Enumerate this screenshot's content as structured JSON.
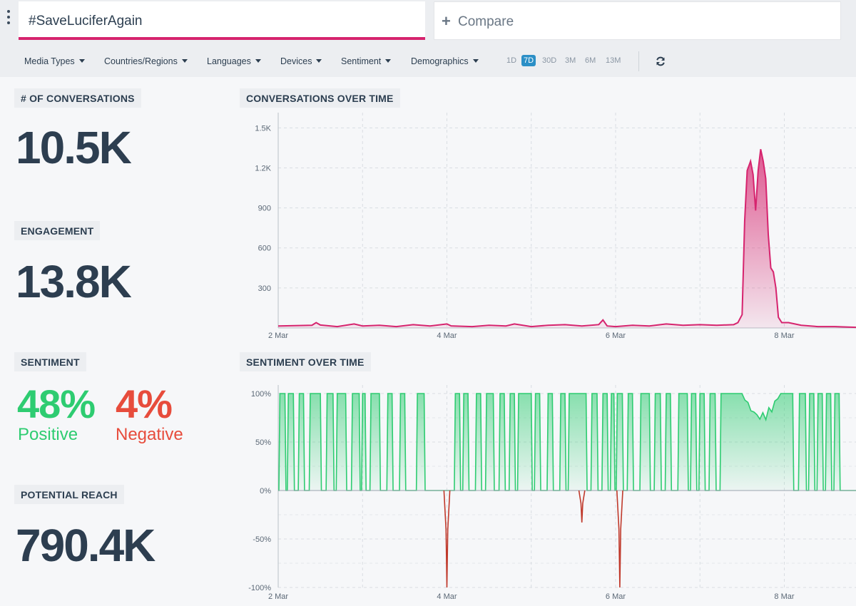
{
  "search": {
    "query": "#SaveLuciferAgain",
    "compare_label": "Compare"
  },
  "filters": [
    "Media Types",
    "Countries/Regions",
    "Languages",
    "Devices",
    "Sentiment",
    "Demographics"
  ],
  "ranges": {
    "items": [
      "1D",
      "7D",
      "30D",
      "3M",
      "6M",
      "13M"
    ],
    "selected": "7D"
  },
  "metrics": {
    "conversations": {
      "label": "# OF CONVERSATIONS",
      "value": "10.5K"
    },
    "engagement": {
      "label": "ENGAGEMENT",
      "value": "13.8K"
    },
    "sentiment": {
      "label": "SENTIMENT",
      "positive_value": "48%",
      "positive_label": "Positive",
      "negative_value": "4%",
      "negative_label": "Negative"
    },
    "reach": {
      "label": "POTENTIAL REACH",
      "value": "790.4K"
    }
  },
  "colors": {
    "accent": "#d6246e",
    "positive": "#2ecc71",
    "negative": "#e74c3c",
    "selected_range": "#2b8fc6"
  },
  "chart_data": [
    {
      "type": "area",
      "title": "CONVERSATIONS OVER TIME",
      "y_ticks": [
        "1.5K",
        "1.2K",
        "900",
        "600",
        "300"
      ],
      "y_tick_values": [
        1500,
        1200,
        900,
        600,
        300
      ],
      "x_ticks": [
        "2 Mar",
        "4 Mar",
        "6 Mar",
        "8 Mar"
      ],
      "x_tick_values": [
        0,
        2,
        4,
        6
      ],
      "ylim": [
        0,
        1550
      ],
      "xlim": [
        0,
        6.85
      ],
      "color": "#d6246e",
      "points": [
        [
          0,
          15
        ],
        [
          0.4,
          20
        ],
        [
          0.45,
          40
        ],
        [
          0.5,
          22
        ],
        [
          0.7,
          10
        ],
        [
          0.9,
          30
        ],
        [
          1.0,
          15
        ],
        [
          1.2,
          20
        ],
        [
          1.4,
          10
        ],
        [
          1.6,
          25
        ],
        [
          1.8,
          15
        ],
        [
          2.0,
          30
        ],
        [
          2.05,
          15
        ],
        [
          2.3,
          10
        ],
        [
          2.5,
          20
        ],
        [
          2.7,
          15
        ],
        [
          2.8,
          30
        ],
        [
          3.0,
          10
        ],
        [
          3.2,
          20
        ],
        [
          3.4,
          25
        ],
        [
          3.6,
          15
        ],
        [
          3.8,
          25
        ],
        [
          3.85,
          60
        ],
        [
          3.9,
          15
        ],
        [
          4.0,
          10
        ],
        [
          4.2,
          20
        ],
        [
          4.4,
          15
        ],
        [
          4.6,
          30
        ],
        [
          4.8,
          20
        ],
        [
          5.0,
          25
        ],
        [
          5.2,
          20
        ],
        [
          5.4,
          25
        ],
        [
          5.45,
          40
        ],
        [
          5.5,
          100
        ],
        [
          5.53,
          800
        ],
        [
          5.56,
          1180
        ],
        [
          5.6,
          1250
        ],
        [
          5.63,
          1150
        ],
        [
          5.66,
          880
        ],
        [
          5.69,
          1180
        ],
        [
          5.72,
          1340
        ],
        [
          5.75,
          1250
        ],
        [
          5.78,
          1120
        ],
        [
          5.81,
          700
        ],
        [
          5.84,
          450
        ],
        [
          5.87,
          420
        ],
        [
          5.9,
          300
        ],
        [
          5.93,
          80
        ],
        [
          5.97,
          40
        ],
        [
          6.05,
          40
        ],
        [
          6.2,
          20
        ],
        [
          6.4,
          10
        ],
        [
          6.6,
          10
        ],
        [
          6.85,
          5
        ]
      ]
    },
    {
      "type": "area",
      "title": "SENTIMENT OVER TIME",
      "y_ticks": [
        "100%",
        "50%",
        "0%",
        "-50%",
        "-100%"
      ],
      "y_tick_values": [
        100,
        50,
        0,
        -50,
        -100
      ],
      "x_ticks": [
        "2 Mar",
        "4 Mar",
        "6 Mar",
        "8 Mar"
      ],
      "x_tick_values": [
        0,
        2,
        4,
        6
      ],
      "ylim": [
        -100,
        100
      ],
      "xlim": [
        0,
        6.85
      ],
      "positive_color": "#2ecc71",
      "negative_color": "#c0392b",
      "positive_spikes": [
        [
          0.02,
          0.08
        ],
        [
          0.12,
          0.18
        ],
        [
          0.25,
          0.3
        ],
        [
          0.38,
          0.5
        ],
        [
          0.58,
          0.65
        ],
        [
          0.7,
          0.8
        ],
        [
          0.88,
          0.96
        ],
        [
          1.0,
          1.03
        ],
        [
          1.1,
          1.2
        ],
        [
          1.3,
          1.35
        ],
        [
          1.45,
          1.5
        ],
        [
          1.65,
          1.73
        ],
        [
          2.1,
          2.15
        ],
        [
          2.2,
          2.25
        ],
        [
          2.35,
          2.4
        ],
        [
          2.47,
          2.55
        ],
        [
          2.63,
          2.68
        ],
        [
          2.75,
          2.8
        ],
        [
          2.85,
          3.0
        ],
        [
          3.05,
          3.1
        ],
        [
          3.2,
          3.25
        ],
        [
          3.35,
          3.4
        ],
        [
          3.45,
          3.65
        ],
        [
          3.72,
          3.78
        ],
        [
          3.85,
          3.9
        ],
        [
          3.95,
          3.98
        ],
        [
          4.02,
          4.08
        ],
        [
          4.15,
          4.2
        ],
        [
          4.3,
          4.4
        ],
        [
          4.47,
          4.53
        ],
        [
          4.6,
          4.65
        ],
        [
          4.75,
          4.85
        ],
        [
          4.9,
          4.95
        ],
        [
          5.0,
          5.05
        ],
        [
          5.12,
          5.18
        ],
        [
          5.25,
          6.1
        ],
        [
          6.18,
          6.25
        ],
        [
          6.3,
          6.35
        ],
        [
          6.4,
          6.45
        ],
        [
          6.5,
          6.55
        ],
        [
          6.6,
          6.65
        ]
      ],
      "dip_from": 5.5,
      "dip_to": 5.95,
      "dip_min": 70,
      "negative_spikes": [
        [
          2.0,
          -100
        ],
        [
          3.6,
          -33
        ],
        [
          4.05,
          -100
        ]
      ]
    }
  ]
}
